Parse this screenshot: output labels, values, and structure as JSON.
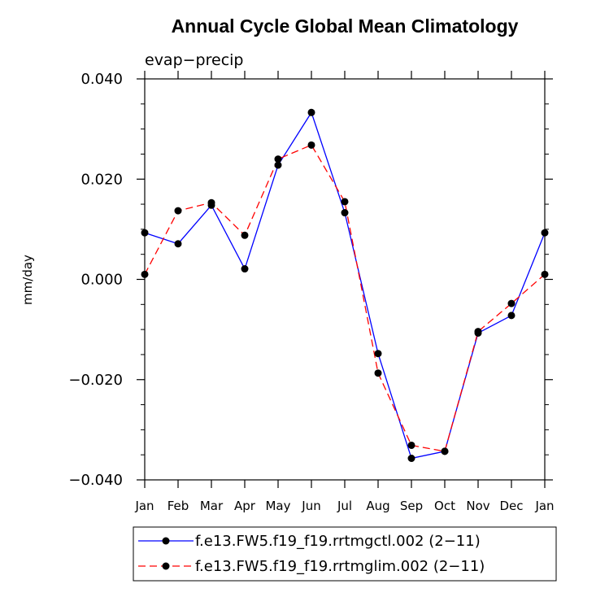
{
  "chart_data": {
    "type": "line",
    "title": "Annual Cycle Global Mean Climatology",
    "subtitle": "evap−precip",
    "xlabel": "",
    "ylabel": "mm/day",
    "categories": [
      "Jan",
      "Feb",
      "Mar",
      "Apr",
      "May",
      "Jun",
      "Jul",
      "Aug",
      "Sep",
      "Oct",
      "Nov",
      "Dec",
      "Jan"
    ],
    "ylim": [
      -0.04,
      0.04
    ],
    "yticks": [
      "−0.040",
      "−0.020",
      "0.000",
      "0.020",
      "0.040"
    ],
    "ytick_values": [
      -0.04,
      -0.02,
      0.0,
      0.02,
      0.04
    ],
    "grid": false,
    "legend_position": "bottom",
    "series": [
      {
        "name": "f.e13.FW5.f19_f19.rrtmgctl.002 (2−11)",
        "color": "#0000ff",
        "dash": "solid",
        "values": [
          0.0093,
          0.0071,
          0.0148,
          0.0021,
          0.0228,
          0.0333,
          0.0133,
          -0.0148,
          -0.0357,
          -0.0343,
          -0.0107,
          -0.0072,
          0.0093
        ]
      },
      {
        "name": "f.e13.FW5.f19_f19.rrtmglim.002 (2−11)",
        "color": "#ff0000",
        "dash": "dashed",
        "values": [
          0.001,
          0.0137,
          0.0153,
          0.0088,
          0.024,
          0.0268,
          0.0155,
          -0.0187,
          -0.0331,
          -0.0343,
          -0.0104,
          -0.0048,
          0.001
        ]
      }
    ]
  }
}
